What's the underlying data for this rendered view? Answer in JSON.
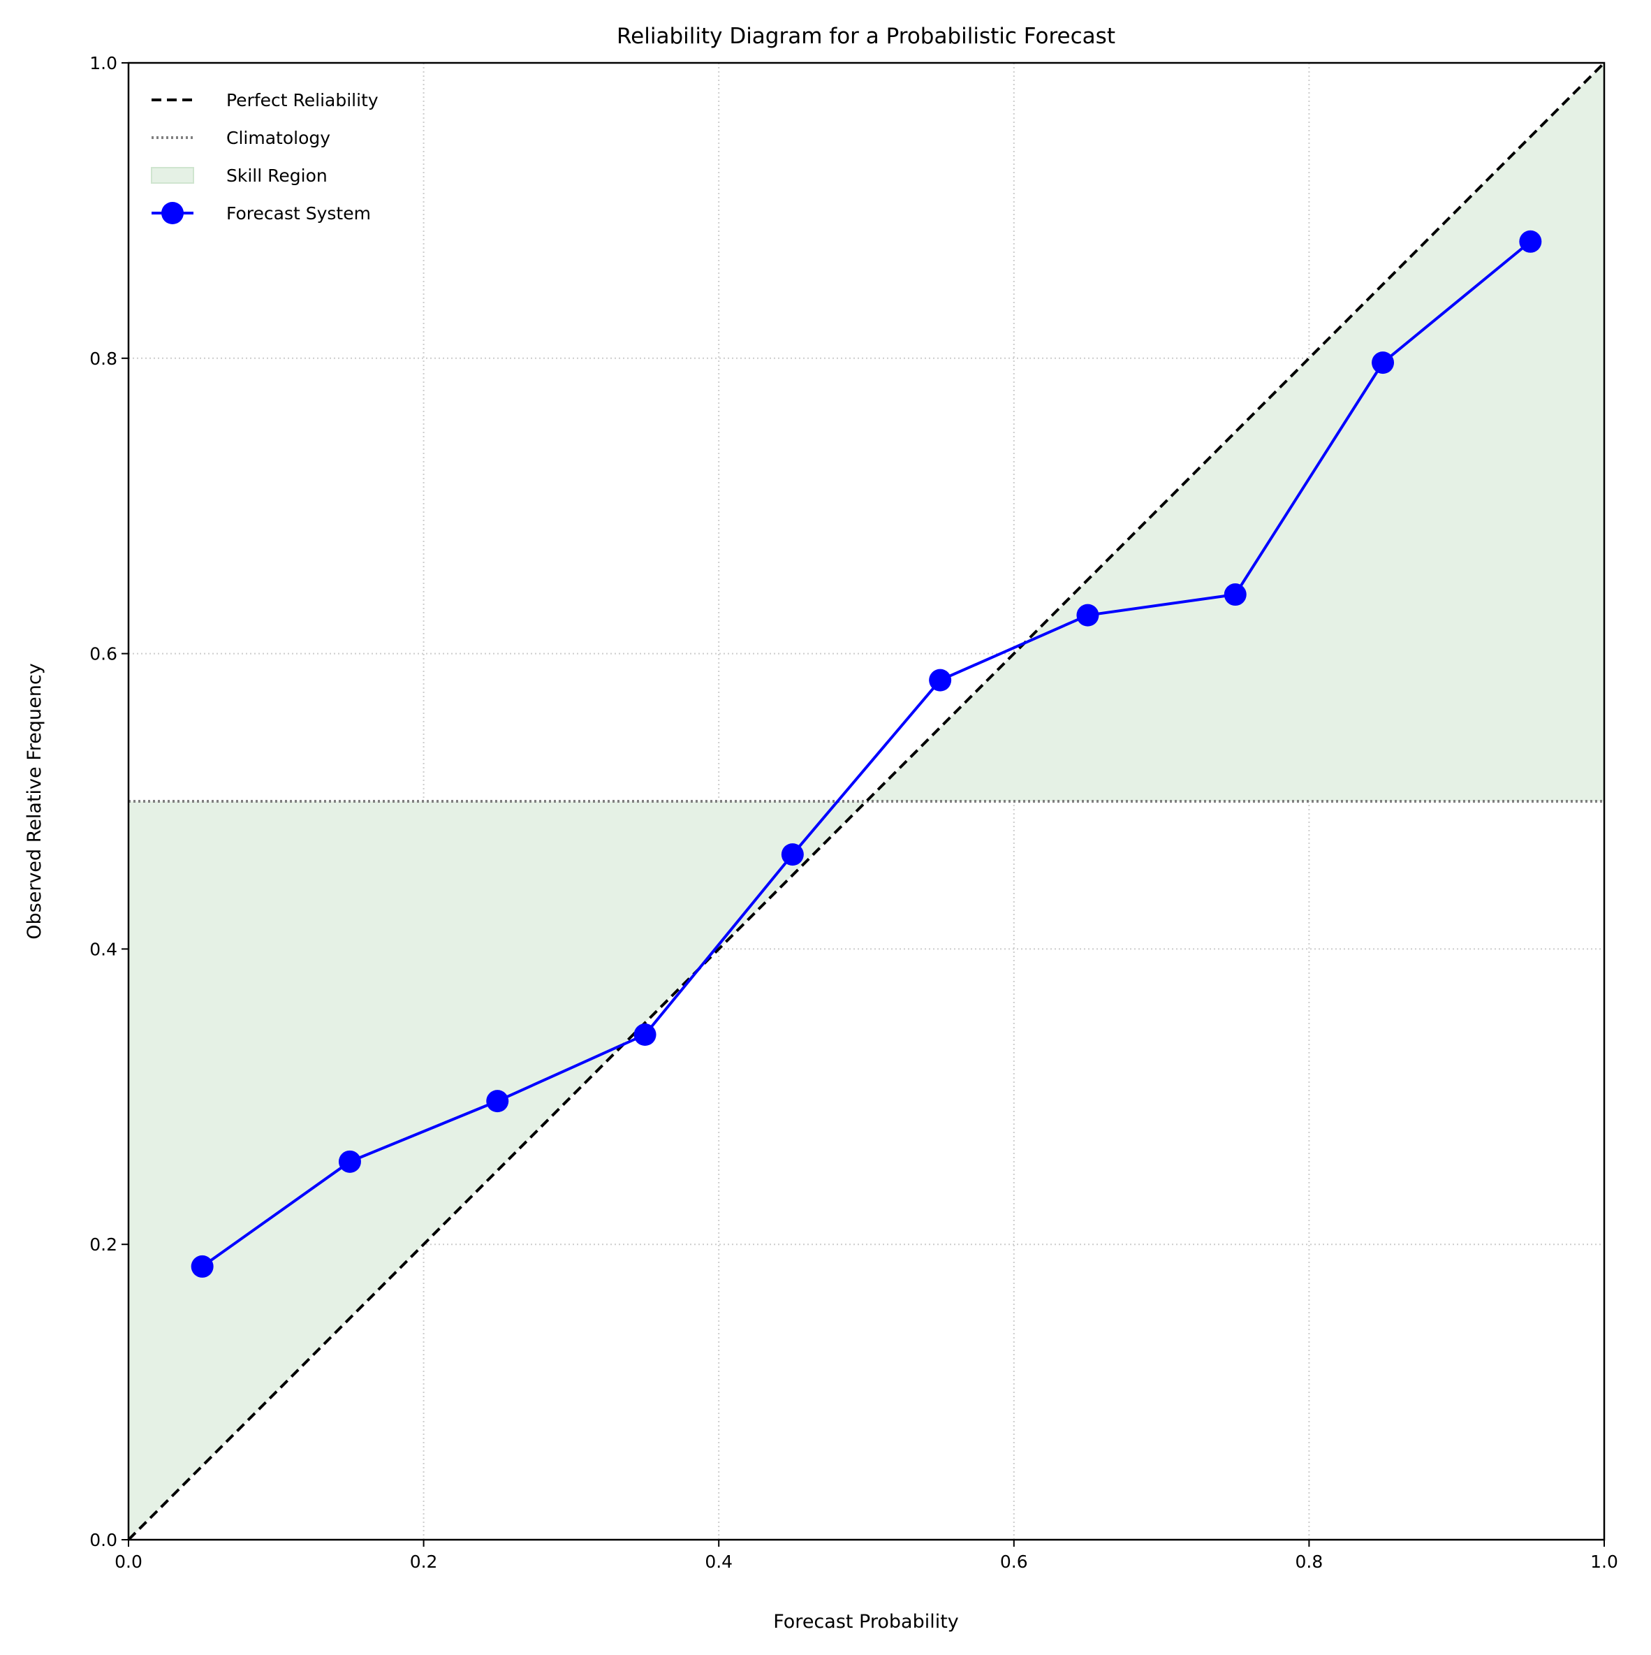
{
  "chart_data": {
    "type": "line",
    "title": "Reliability Diagram for a Probabilistic Forecast",
    "xlabel": "Forecast Probability",
    "ylabel": "Observed Relative Frequency",
    "xlim": [
      0,
      1
    ],
    "ylim": [
      0,
      1
    ],
    "xticks": [
      "0.0",
      "0.2",
      "0.4",
      "0.6",
      "0.8",
      "1.0"
    ],
    "yticks": [
      "0.0",
      "0.2",
      "0.4",
      "0.6",
      "0.8",
      "1.0"
    ],
    "grid": true,
    "legend_placement": "top-left",
    "climatology": 0.5,
    "legend": [
      "Perfect Reliability",
      "Climatology",
      "Skill Region",
      "Forecast System"
    ],
    "series": [
      {
        "name": "Forecast System",
        "color": "#0000ff",
        "x": [
          0.05,
          0.15,
          0.25,
          0.35,
          0.45,
          0.55,
          0.65,
          0.75,
          0.85,
          0.95
        ],
        "y": [
          0.185,
          0.256,
          0.297,
          0.342,
          0.464,
          0.582,
          0.626,
          0.64,
          0.797,
          0.879
        ]
      }
    ],
    "colors": {
      "perfect": "#000000",
      "climatology": "#808080",
      "skill": "#e5f1e5",
      "forecast": "#0000ff"
    }
  }
}
